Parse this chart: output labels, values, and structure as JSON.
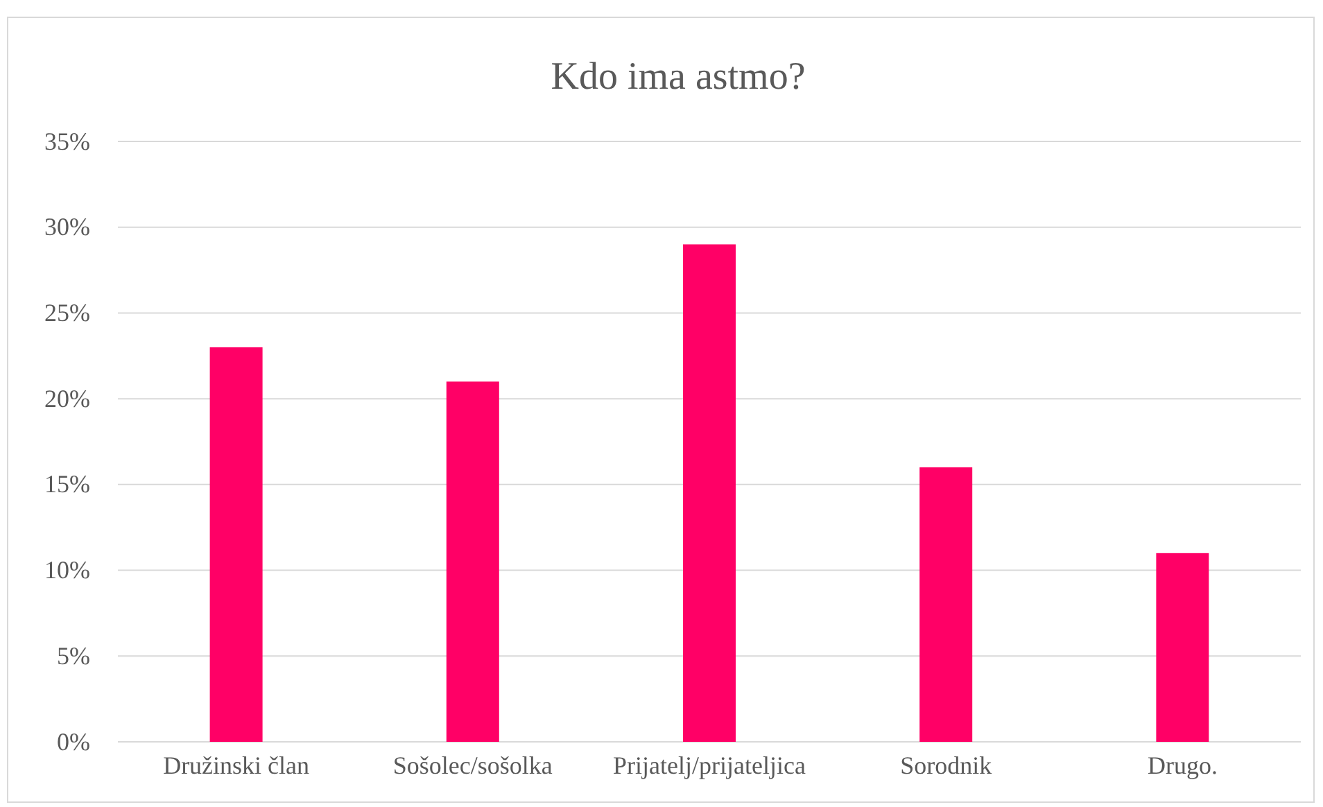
{
  "chart_data": {
    "type": "bar",
    "title": "Kdo ima astmo?",
    "categories": [
      "Družinski član",
      "Sošolec/sošolka",
      "Prijatelj/prijateljica",
      "Sorodnik",
      "Drugo."
    ],
    "values": [
      23,
      21,
      29,
      16,
      11
    ],
    "color": "#ff0066",
    "ylim": [
      0,
      35
    ],
    "yticks": [
      {
        "value": 0,
        "label": "0%"
      },
      {
        "value": 5,
        "label": "5%"
      },
      {
        "value": 10,
        "label": "10%"
      },
      {
        "value": 15,
        "label": "15%"
      },
      {
        "value": 20,
        "label": "20%"
      },
      {
        "value": 25,
        "label": "25%"
      },
      {
        "value": 30,
        "label": "30%"
      },
      {
        "value": 35,
        "label": "35%"
      }
    ],
    "grid": "y"
  }
}
